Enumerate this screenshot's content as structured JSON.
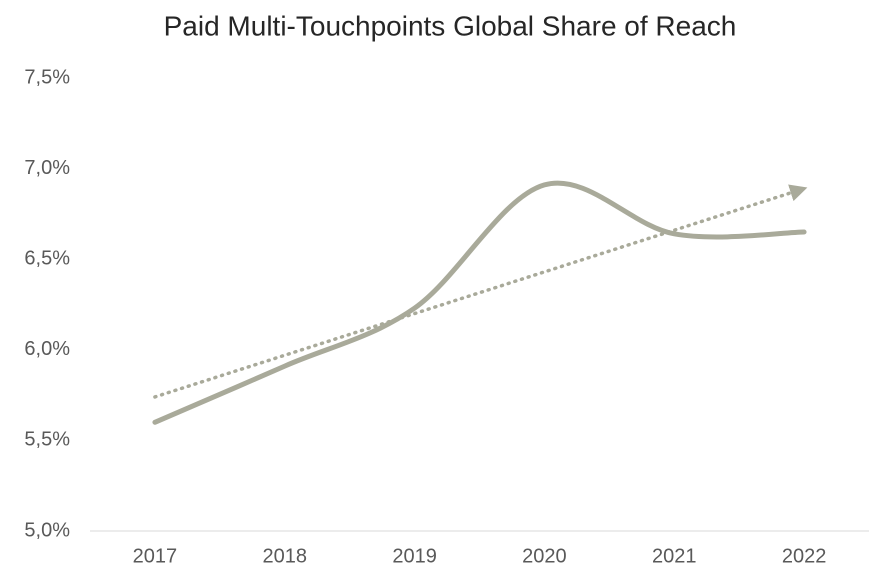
{
  "chart_data": {
    "type": "line",
    "title": "Paid Multi-Touchpoints Global Share of Reach",
    "categories": [
      "2017",
      "2018",
      "2019",
      "2020",
      "2021",
      "2022"
    ],
    "series": [
      {
        "color": "#a9aa9a",
        "values": [
          5.6,
          5.91,
          6.23,
          6.91,
          6.64,
          6.65
        ]
      }
    ],
    "smooth": true,
    "trendline": {
      "start": 5.74,
      "end": 6.89,
      "color": "#a9aa9a",
      "style": "dotted",
      "arrow": true
    },
    "ylim": [
      5.0,
      7.5
    ],
    "yticks": [
      {
        "value": 5.0,
        "label": "5,0%"
      },
      {
        "value": 5.5,
        "label": "5,5%"
      },
      {
        "value": 6.0,
        "label": "6,0%"
      },
      {
        "value": 6.5,
        "label": "6,5%"
      },
      {
        "value": 7.0,
        "label": "7,0%"
      },
      {
        "value": 7.5,
        "label": "7,5%"
      }
    ],
    "grid": false
  }
}
